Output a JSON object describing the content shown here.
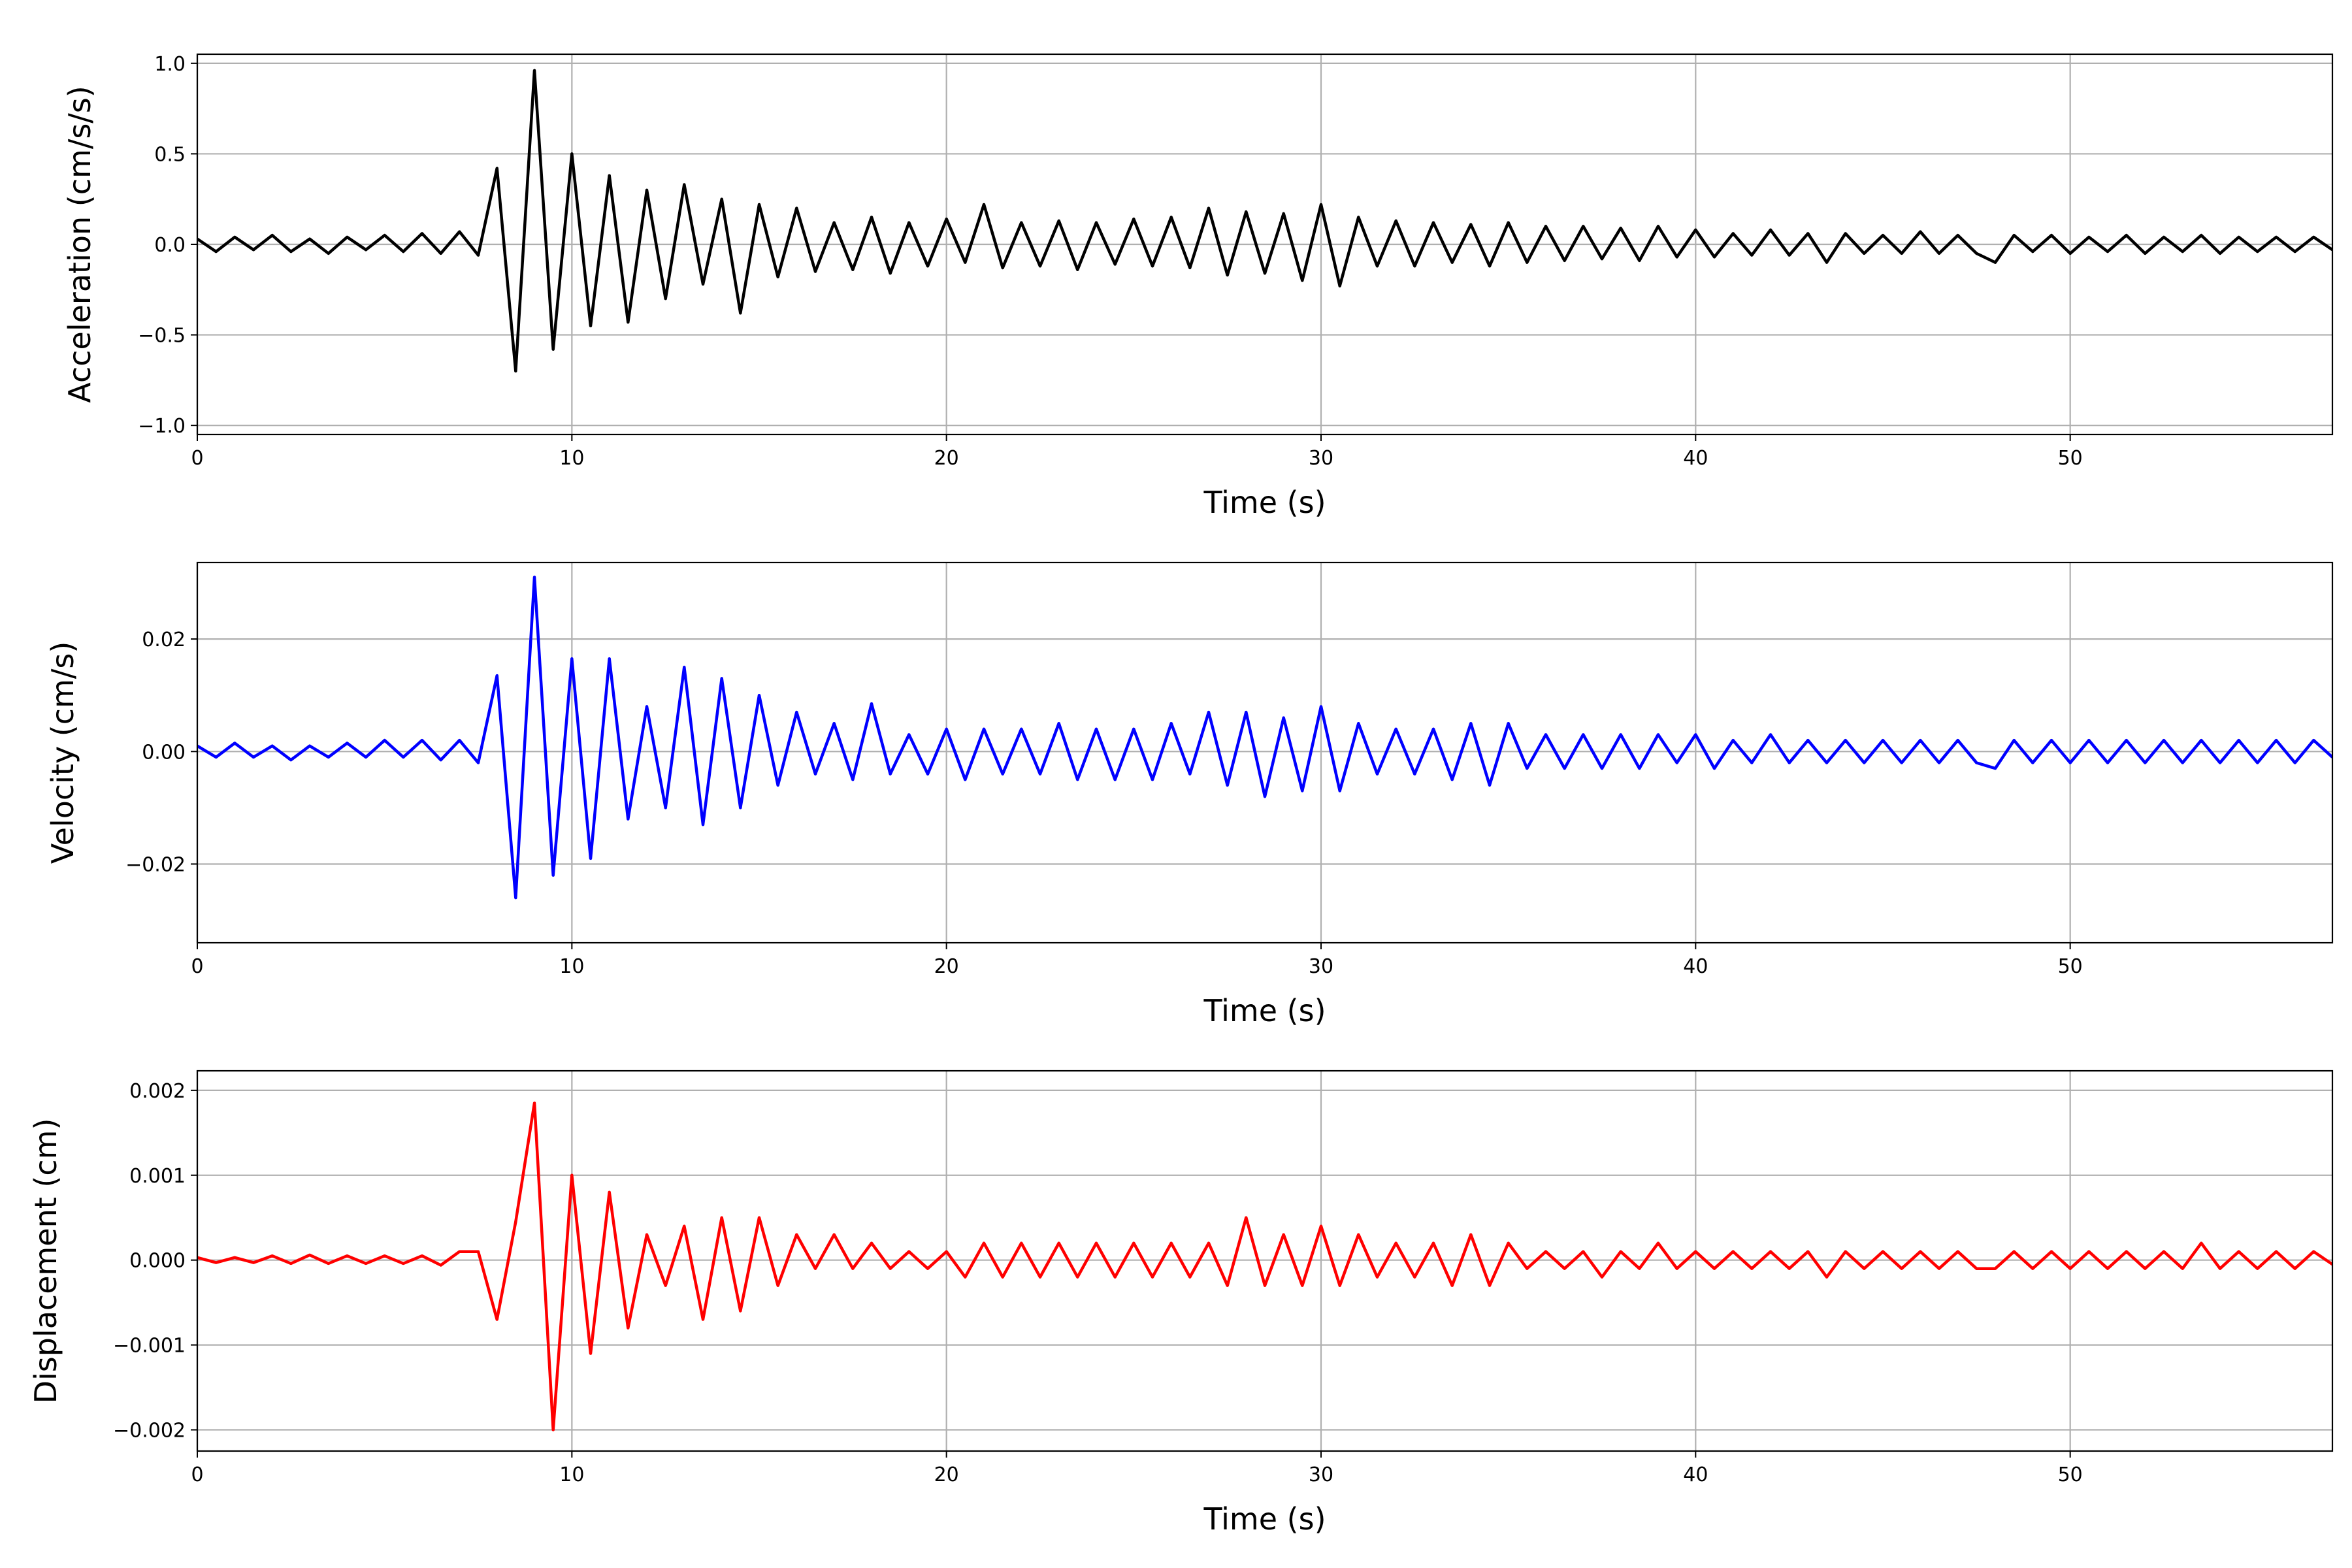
{
  "chart_data": [
    {
      "type": "line",
      "xlabel": "Time (s)",
      "ylabel": "Acceleration (cm/s/s)",
      "color": "#000000",
      "grid": true,
      "xlim": [
        0,
        57
      ],
      "xticks": [
        0,
        10,
        20,
        30,
        40,
        50
      ],
      "ylim": [
        -1.05,
        1.05
      ],
      "yticks": [
        {
          "value": -1.0,
          "label": "−1.0"
        },
        {
          "value": -0.5,
          "label": "−0.5"
        },
        {
          "value": 0,
          "label": "0.0"
        },
        {
          "value": 0.5,
          "label": "0.5"
        },
        {
          "value": 1.0,
          "label": "1.0"
        }
      ],
      "x": [
        0,
        0.5,
        1,
        1.5,
        2,
        2.5,
        3,
        3.5,
        4,
        4.5,
        5,
        5.5,
        6,
        6.5,
        7,
        7.5,
        8,
        8.5,
        9,
        9.5,
        10,
        10.5,
        11,
        11.5,
        12,
        12.5,
        13,
        13.5,
        14,
        14.5,
        15,
        15.5,
        16,
        16.5,
        17,
        17.5,
        18,
        18.5,
        19,
        19.5,
        20,
        20.5,
        21,
        21.5,
        22,
        22.5,
        23,
        23.5,
        24,
        24.5,
        25,
        25.5,
        26,
        26.5,
        27,
        27.5,
        28,
        28.5,
        29,
        29.5,
        30,
        30.5,
        31,
        31.5,
        32,
        32.5,
        33,
        33.5,
        34,
        34.5,
        35,
        35.5,
        36,
        36.5,
        37,
        37.5,
        38,
        38.5,
        39,
        39.5,
        40,
        40.5,
        41,
        41.5,
        42,
        42.5,
        43,
        43.5,
        44,
        44.5,
        45,
        45.5,
        46,
        46.5,
        47,
        47.5,
        48,
        48.5,
        49,
        49.5,
        50,
        50.5,
        51,
        51.5,
        52,
        52.5,
        53,
        53.5,
        54,
        54.5,
        55,
        55.5,
        56,
        56.5,
        57
      ],
      "values": [
        0.03,
        -0.04,
        0.04,
        -0.03,
        0.05,
        -0.04,
        0.03,
        -0.05,
        0.04,
        -0.03,
        0.05,
        -0.04,
        0.06,
        -0.05,
        0.07,
        -0.06,
        0.42,
        -0.7,
        0.96,
        -0.58,
        0.5,
        -0.45,
        0.38,
        -0.43,
        0.3,
        -0.3,
        0.33,
        -0.22,
        0.25,
        -0.38,
        0.22,
        -0.18,
        0.2,
        -0.15,
        0.12,
        -0.14,
        0.15,
        -0.16,
        0.12,
        -0.12,
        0.14,
        -0.1,
        0.22,
        -0.13,
        0.12,
        -0.12,
        0.13,
        -0.14,
        0.12,
        -0.11,
        0.14,
        -0.12,
        0.15,
        -0.13,
        0.2,
        -0.17,
        0.18,
        -0.16,
        0.17,
        -0.2,
        0.22,
        -0.23,
        0.15,
        -0.12,
        0.13,
        -0.12,
        0.12,
        -0.1,
        0.11,
        -0.12,
        0.12,
        -0.1,
        0.1,
        -0.09,
        0.1,
        -0.08,
        0.09,
        -0.09,
        0.1,
        -0.07,
        0.08,
        -0.07,
        0.06,
        -0.06,
        0.08,
        -0.06,
        0.06,
        -0.1,
        0.06,
        -0.05,
        0.05,
        -0.05,
        0.07,
        -0.05,
        0.05,
        -0.05,
        -0.1,
        0.05,
        -0.04,
        0.05,
        -0.05,
        0.04,
        -0.04,
        0.05,
        -0.05,
        0.04,
        -0.04,
        0.05,
        -0.05,
        0.04,
        -0.04,
        0.04,
        -0.04,
        0.04,
        -0.03
      ]
    },
    {
      "type": "line",
      "xlabel": "Time (s)",
      "ylabel": "Velocity (cm/s)",
      "color": "#0000ff",
      "grid": true,
      "xlim": [
        0,
        57
      ],
      "xticks": [
        0,
        10,
        20,
        30,
        40,
        50
      ],
      "ylim": [
        -0.034,
        0.0336
      ],
      "yticks": [
        {
          "value": -0.02,
          "label": "−0.02"
        },
        {
          "value": 0,
          "label": "0.00"
        },
        {
          "value": 0.02,
          "label": "0.02"
        }
      ],
      "x": [
        0,
        0.5,
        1,
        1.5,
        2,
        2.5,
        3,
        3.5,
        4,
        4.5,
        5,
        5.5,
        6,
        6.5,
        7,
        7.5,
        8,
        8.5,
        9,
        9.5,
        10,
        10.5,
        11,
        11.5,
        12,
        12.5,
        13,
        13.5,
        14,
        14.5,
        15,
        15.5,
        16,
        16.5,
        17,
        17.5,
        18,
        18.5,
        19,
        19.5,
        20,
        20.5,
        21,
        21.5,
        22,
        22.5,
        23,
        23.5,
        24,
        24.5,
        25,
        25.5,
        26,
        26.5,
        27,
        27.5,
        28,
        28.5,
        29,
        29.5,
        30,
        30.5,
        31,
        31.5,
        32,
        32.5,
        33,
        33.5,
        34,
        34.5,
        35,
        35.5,
        36,
        36.5,
        37,
        37.5,
        38,
        38.5,
        39,
        39.5,
        40,
        40.5,
        41,
        41.5,
        42,
        42.5,
        43,
        43.5,
        44,
        44.5,
        45,
        45.5,
        46,
        46.5,
        47,
        47.5,
        48,
        48.5,
        49,
        49.5,
        50,
        50.5,
        51,
        51.5,
        52,
        52.5,
        53,
        53.5,
        54,
        54.5,
        55,
        55.5,
        56,
        56.5,
        57
      ],
      "values": [
        0.001,
        -0.001,
        0.0015,
        -0.001,
        0.001,
        -0.0015,
        0.001,
        -0.001,
        0.0015,
        -0.001,
        0.002,
        -0.001,
        0.002,
        -0.0015,
        0.002,
        -0.002,
        0.0135,
        -0.026,
        0.031,
        -0.022,
        0.0165,
        -0.019,
        0.0165,
        -0.012,
        0.008,
        -0.01,
        0.015,
        -0.013,
        0.013,
        -0.01,
        0.01,
        -0.006,
        0.007,
        -0.004,
        0.005,
        -0.005,
        0.0085,
        -0.004,
        0.003,
        -0.004,
        0.004,
        -0.005,
        0.004,
        -0.004,
        0.004,
        -0.004,
        0.005,
        -0.005,
        0.004,
        -0.005,
        0.004,
        -0.005,
        0.005,
        -0.004,
        0.007,
        -0.006,
        0.007,
        -0.008,
        0.006,
        -0.007,
        0.008,
        -0.007,
        0.005,
        -0.004,
        0.004,
        -0.004,
        0.004,
        -0.005,
        0.005,
        -0.006,
        0.005,
        -0.003,
        0.003,
        -0.003,
        0.003,
        -0.003,
        0.003,
        -0.003,
        0.003,
        -0.002,
        0.003,
        -0.003,
        0.002,
        -0.002,
        0.003,
        -0.002,
        0.002,
        -0.002,
        0.002,
        -0.002,
        0.002,
        -0.002,
        0.002,
        -0.002,
        0.002,
        -0.002,
        -0.003,
        0.002,
        -0.002,
        0.002,
        -0.002,
        0.002,
        -0.002,
        0.002,
        -0.002,
        0.002,
        -0.002,
        0.002,
        -0.002,
        0.002,
        -0.002,
        0.002,
        -0.002,
        0.002,
        -0.001
      ]
    },
    {
      "type": "line",
      "xlabel": "Time (s)",
      "ylabel": "Displacement (cm)",
      "color": "#ff0000",
      "grid": true,
      "xlim": [
        0,
        57
      ],
      "xticks": [
        0,
        10,
        20,
        30,
        40,
        50
      ],
      "ylim": [
        -0.00225,
        0.00223
      ],
      "yticks": [
        {
          "value": -0.002,
          "label": "−0.002"
        },
        {
          "value": -0.001,
          "label": "−0.001"
        },
        {
          "value": 0,
          "label": "0.000"
        },
        {
          "value": 0.001,
          "label": "0.001"
        },
        {
          "value": 0.002,
          "label": "0.002"
        }
      ],
      "x": [
        0,
        0.5,
        1,
        1.5,
        2,
        2.5,
        3,
        3.5,
        4,
        4.5,
        5,
        5.5,
        6,
        6.5,
        7,
        7.5,
        8,
        8.5,
        9,
        9.5,
        10,
        10.5,
        11,
        11.5,
        12,
        12.5,
        13,
        13.5,
        14,
        14.5,
        15,
        15.5,
        16,
        16.5,
        17,
        17.5,
        18,
        18.5,
        19,
        19.5,
        20,
        20.5,
        21,
        21.5,
        22,
        22.5,
        23,
        23.5,
        24,
        24.5,
        25,
        25.5,
        26,
        26.5,
        27,
        27.5,
        28,
        28.5,
        29,
        29.5,
        30,
        30.5,
        31,
        31.5,
        32,
        32.5,
        33,
        33.5,
        34,
        34.5,
        35,
        35.5,
        36,
        36.5,
        37,
        37.5,
        38,
        38.5,
        39,
        39.5,
        40,
        40.5,
        41,
        41.5,
        42,
        42.5,
        43,
        43.5,
        44,
        44.5,
        45,
        45.5,
        46,
        46.5,
        47,
        47.5,
        48,
        48.5,
        49,
        49.5,
        50,
        50.5,
        51,
        51.5,
        52,
        52.5,
        53,
        53.5,
        54,
        54.5,
        55,
        55.5,
        56,
        56.5,
        57
      ],
      "values": [
        3e-05,
        -3e-05,
        3e-05,
        -3e-05,
        5e-05,
        -4e-05,
        6e-05,
        -4e-05,
        5e-05,
        -4e-05,
        5e-05,
        -4e-05,
        5e-05,
        -6e-05,
        0.0001,
        0.0001,
        -0.0007,
        0.00045,
        0.00185,
        -0.002,
        0.001,
        -0.0011,
        0.0008,
        -0.0008,
        0.0003,
        -0.0003,
        0.0004,
        -0.0007,
        0.0005,
        -0.0006,
        0.0005,
        -0.0003,
        0.0003,
        -0.0001,
        0.0003,
        -0.0001,
        0.0002,
        -0.0001,
        0.0001,
        -0.0001,
        0.0001,
        -0.0002,
        0.0002,
        -0.0002,
        0.0002,
        -0.0002,
        0.0002,
        -0.0002,
        0.0002,
        -0.0002,
        0.0002,
        -0.0002,
        0.0002,
        -0.0002,
        0.0002,
        -0.0003,
        0.0005,
        -0.0003,
        0.0003,
        -0.0003,
        0.0004,
        -0.0003,
        0.0003,
        -0.0002,
        0.0002,
        -0.0002,
        0.0002,
        -0.0003,
        0.0003,
        -0.0003,
        0.0002,
        -0.0001,
        0.0001,
        -0.0001,
        0.0001,
        -0.0002,
        0.0001,
        -0.0001,
        0.0002,
        -0.0001,
        0.0001,
        -0.0001,
        0.0001,
        -0.0001,
        0.0001,
        -0.0001,
        0.0001,
        -0.0002,
        0.0001,
        -0.0001,
        0.0001,
        -0.0001,
        0.0001,
        -0.0001,
        0.0001,
        -0.0001,
        -0.0001,
        0.0001,
        -0.0001,
        0.0001,
        -0.0001,
        0.0001,
        -0.0001,
        0.0001,
        -0.0001,
        0.0001,
        -0.0001,
        0.0002,
        -0.0001,
        0.0001,
        -0.0001,
        0.0001,
        -0.0001,
        0.0001,
        -5e-05
      ]
    }
  ]
}
